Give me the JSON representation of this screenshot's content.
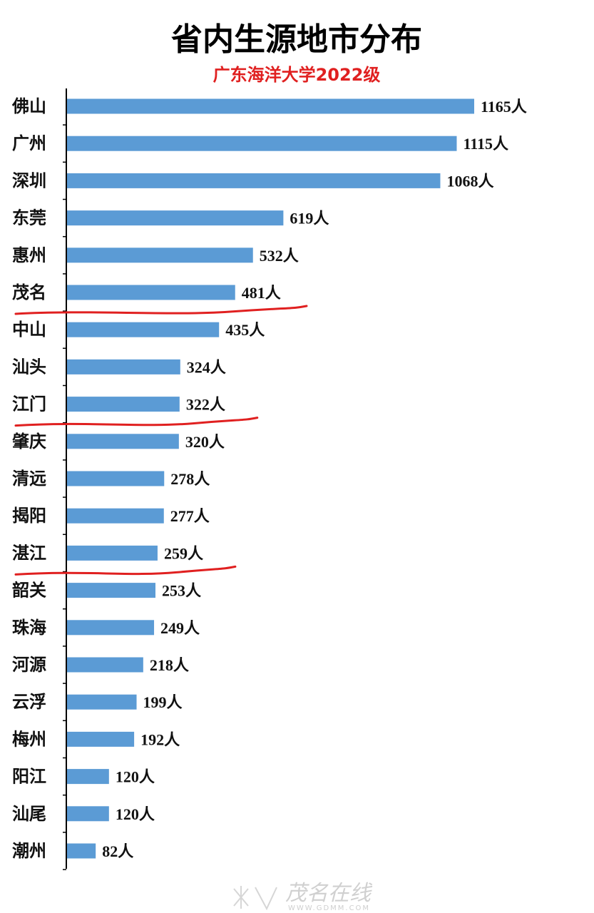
{
  "chart_data": {
    "type": "bar",
    "orientation": "horizontal",
    "title": "省内生源地市分布",
    "subtitle": "广东海洋大学2022级",
    "unit_suffix": "人",
    "categories": [
      "佛山",
      "广州",
      "深圳",
      "东莞",
      "惠州",
      "茂名",
      "中山",
      "汕头",
      "江门",
      "肇庆",
      "清远",
      "揭阳",
      "湛江",
      "韶关",
      "珠海",
      "河源",
      "云浮",
      "梅州",
      "阳江",
      "汕尾",
      "潮州"
    ],
    "values": [
      1165,
      1115,
      1068,
      619,
      532,
      481,
      435,
      324,
      322,
      320,
      278,
      277,
      259,
      253,
      249,
      218,
      199,
      192,
      120,
      120,
      82
    ],
    "xlim": [
      0,
      1165
    ],
    "grid": false,
    "legend": "none",
    "underlined_after": [
      "茂名",
      "江门",
      "湛江"
    ]
  },
  "colors": {
    "bar": "#5b9bd5",
    "subtitle": "#e02020",
    "underline": "#e02020",
    "axis": "#000000"
  },
  "watermark": {
    "brand": "茂名在线",
    "url": "WWW.GDMM.COM"
  }
}
